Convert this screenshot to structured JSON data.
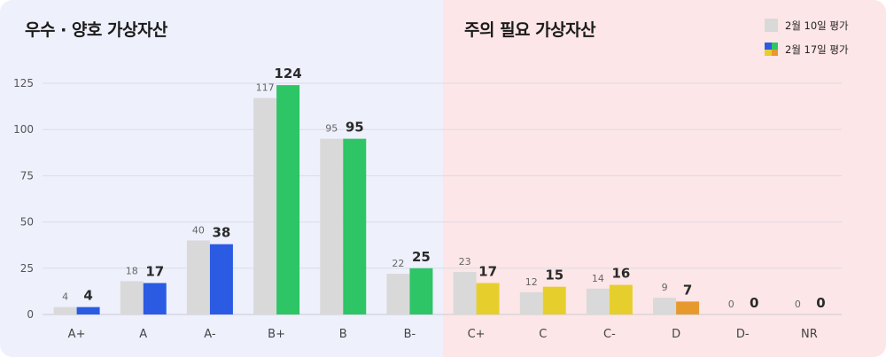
{
  "sections": {
    "good_title": "우수 · 양호 가상자산",
    "caution_title": "주의 필요 가상자산"
  },
  "legend": {
    "prev_label": "2월 10일 평가",
    "curr_label": "2월 17일 평가",
    "prev_color": "#d9d9d9",
    "curr_colors": [
      "#2b5be3",
      "#2ec567",
      "#e6cf2c",
      "#e69a2e"
    ]
  },
  "chart_data": {
    "type": "bar",
    "categories": [
      "A+",
      "A",
      "A-",
      "B+",
      "B",
      "B-",
      "C+",
      "C",
      "C-",
      "D",
      "D-",
      "NR"
    ],
    "series": [
      {
        "name": "2월 10일 평가",
        "values": [
          4,
          18,
          40,
          117,
          95,
          22,
          23,
          12,
          14,
          9,
          0,
          0
        ]
      },
      {
        "name": "2월 17일 평가",
        "values": [
          4,
          17,
          38,
          124,
          95,
          25,
          17,
          15,
          16,
          7,
          0,
          0
        ]
      }
    ],
    "current_bar_colors": [
      "#2b5be3",
      "#2b5be3",
      "#2b5be3",
      "#2ec567",
      "#2ec567",
      "#2ec567",
      "#e6cf2c",
      "#e6cf2c",
      "#e6cf2c",
      "#e69a2e",
      "#e69a2e",
      "#e69a2e"
    ],
    "yticks": [
      0,
      25,
      50,
      75,
      100,
      125
    ],
    "ylim": [
      0,
      125
    ],
    "grid": true,
    "legend_position": "top-right"
  }
}
